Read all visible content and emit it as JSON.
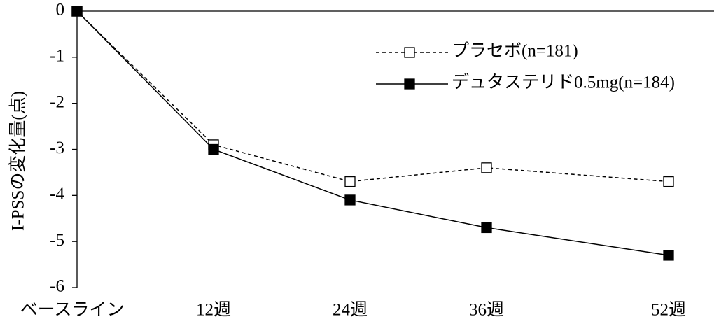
{
  "chart_data": {
    "type": "line",
    "y_label": "I-PSSの変化量(点)",
    "x": [
      0,
      12,
      24,
      36,
      52
    ],
    "xlim": [
      0,
      56
    ],
    "xticks": [
      {
        "value": 0,
        "label": "ベースライン"
      },
      {
        "value": 12,
        "label": "12週"
      },
      {
        "value": 24,
        "label": "24週"
      },
      {
        "value": 36,
        "label": "36週"
      },
      {
        "value": 52,
        "label": "52週"
      }
    ],
    "ylim": [
      -6,
      0
    ],
    "yticks": [
      0,
      -1,
      -2,
      -3,
      -4,
      -5,
      -6
    ],
    "legend": "upper right",
    "series": [
      {
        "name": "プラセボ(n=181)",
        "color": "#000000",
        "dash": true,
        "filled": false,
        "values": [
          0,
          -2.9,
          -3.7,
          -3.4,
          -3.7
        ]
      },
      {
        "name": "デュタステリド0.5mg(n=184)",
        "color": "#000000",
        "dash": false,
        "filled": true,
        "values": [
          0,
          -3.0,
          -4.1,
          -4.7,
          -5.3
        ]
      }
    ]
  }
}
